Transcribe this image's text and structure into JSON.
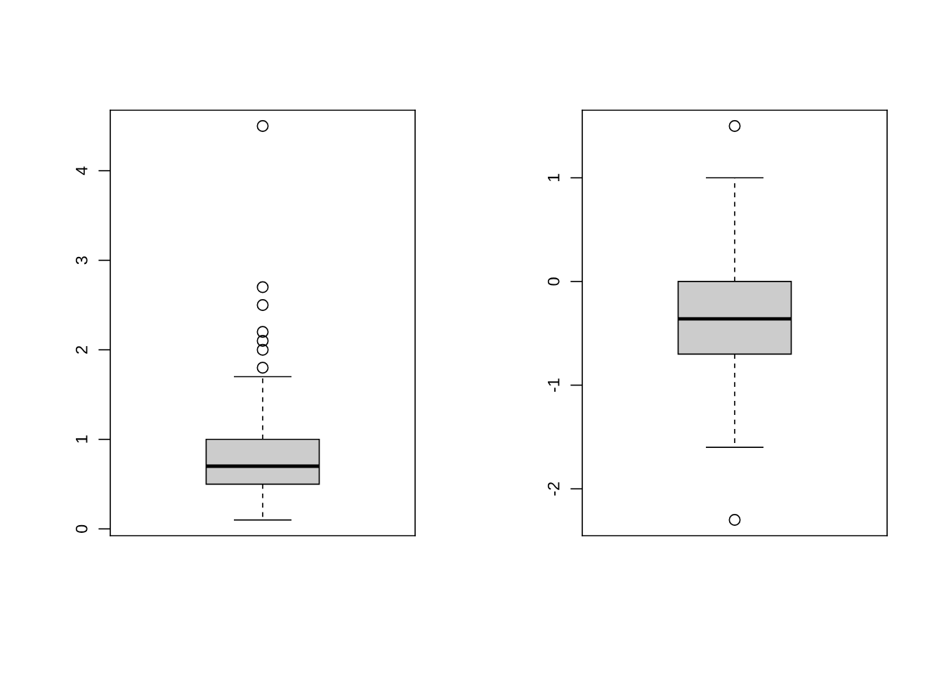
{
  "chart_data": [
    {
      "type": "box",
      "categories": [
        null
      ],
      "colors": [
        "#cccccc"
      ],
      "boxes": [
        {
          "low": 0.1,
          "q1": 0.5,
          "median": 0.7,
          "q3": 1.0,
          "high": 1.7,
          "outliers": [
            1.8,
            2.0,
            2.1,
            2.2,
            2.5,
            2.7,
            4.5
          ]
        }
      ],
      "ylim": [
        -0.076,
        4.676
      ],
      "yticks": [
        0,
        1,
        2,
        3,
        4
      ],
      "tick_labels": "y"
    },
    {
      "type": "box",
      "categories": [
        null
      ],
      "colors": [
        "#cccccc"
      ],
      "boxes": [
        {
          "low": -1.6,
          "q1": -0.7,
          "median": -0.36,
          "q3": 0.0,
          "high": 1.0,
          "outliers": [
            1.5,
            -2.3
          ]
        }
      ],
      "ylim": [
        -2.452,
        1.652
      ],
      "yticks": [
        -2,
        -1,
        0,
        1
      ],
      "tick_labels": "y"
    }
  ]
}
